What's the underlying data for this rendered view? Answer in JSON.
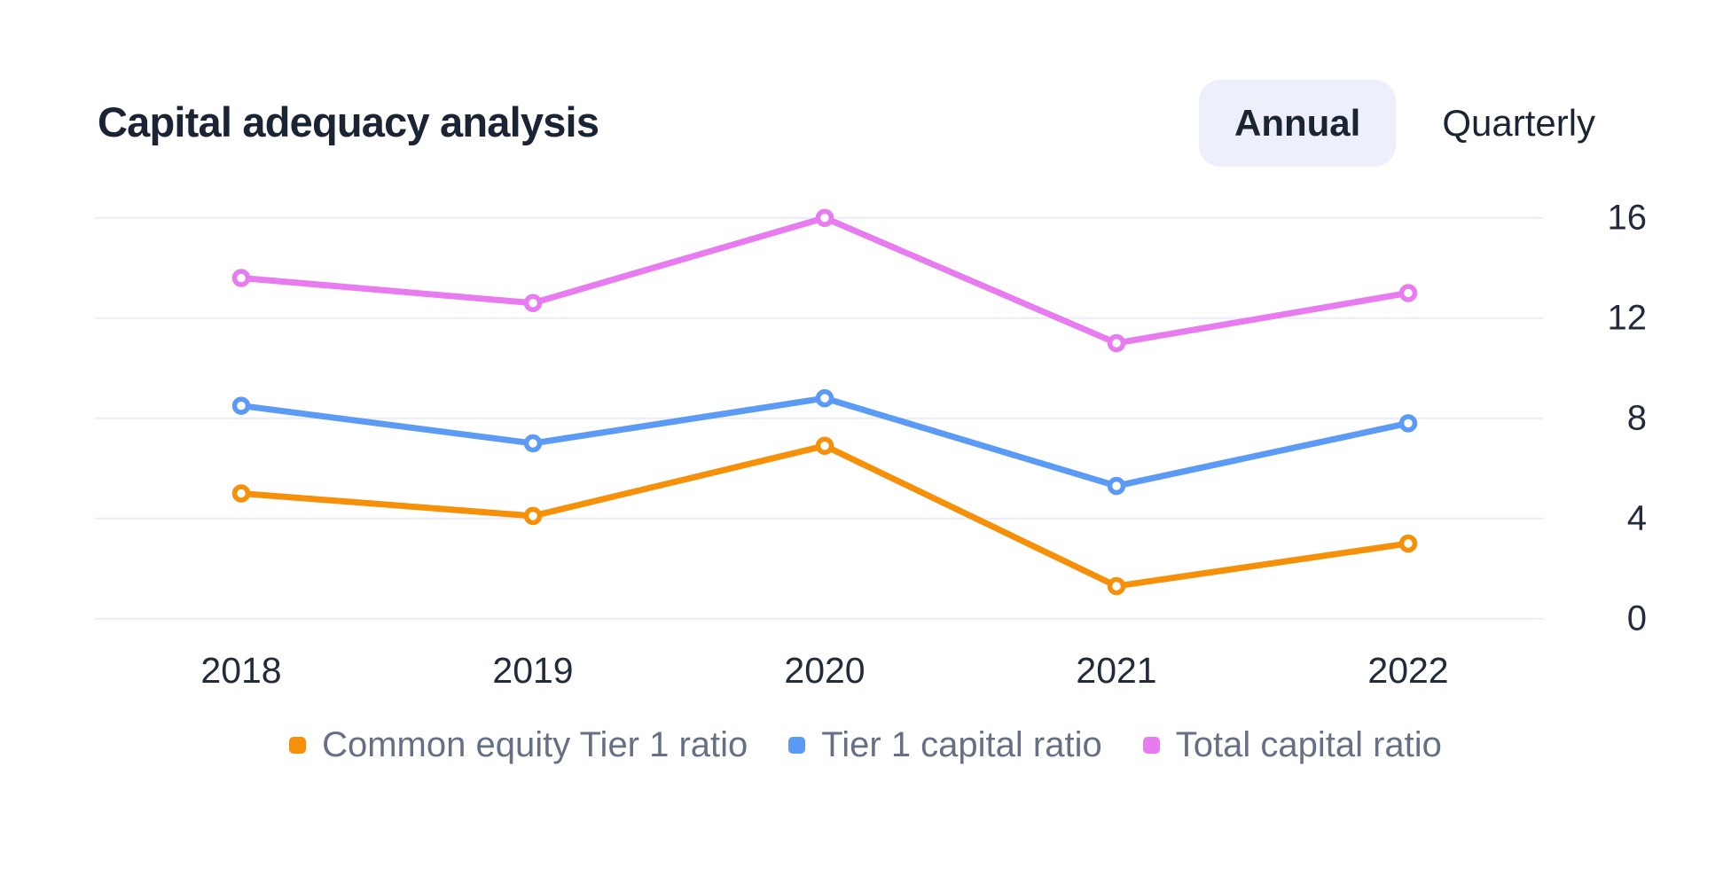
{
  "header": {
    "title": "Capital adequacy analysis",
    "toggle": {
      "options": [
        {
          "label": "Annual",
          "selected": true
        },
        {
          "label": "Quarterly",
          "selected": false
        }
      ]
    }
  },
  "chart_data": {
    "type": "line",
    "categories": [
      "2018",
      "2019",
      "2020",
      "2021",
      "2022"
    ],
    "series": [
      {
        "name": "Common equity Tier 1 ratio",
        "color": "#F79009",
        "values": [
          5.0,
          4.1,
          6.9,
          1.3,
          3.0
        ]
      },
      {
        "name": "Tier 1 capital ratio",
        "color": "#5B9BF5",
        "values": [
          8.5,
          7.0,
          8.8,
          5.3,
          7.8
        ]
      },
      {
        "name": "Total capital ratio",
        "color": "#E87BF0",
        "values": [
          13.6,
          12.6,
          16.0,
          11.0,
          13.0
        ]
      }
    ],
    "yticks": [
      0,
      4,
      8,
      12,
      16
    ],
    "ylim": [
      0,
      16
    ],
    "xlabel": "",
    "ylabel": "",
    "grid": true,
    "y_axis_side": "right",
    "legend_position": "bottom",
    "marker_style": "open-circle"
  },
  "colors": {
    "background": "#FFFFFF",
    "title_text": "#1B2433",
    "axis_text": "#222B3A",
    "legend_text": "#667085",
    "gridline": "#E9EEF6",
    "selected_chip_bg": "#EDF0FA",
    "marker_fill": "#FFFFFF"
  }
}
